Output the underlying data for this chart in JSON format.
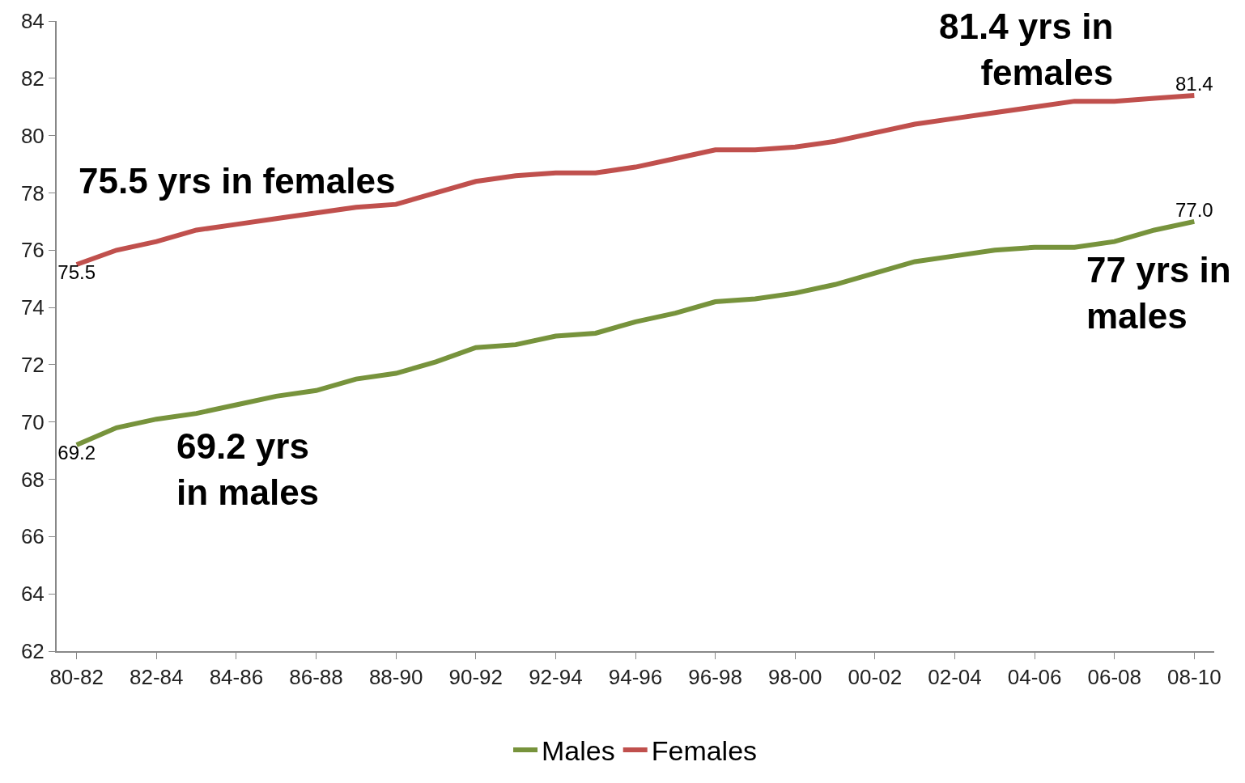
{
  "chart_data": {
    "type": "line",
    "categories": [
      "80-82",
      null,
      "82-84",
      null,
      "84-86",
      null,
      "86-88",
      null,
      "88-90",
      null,
      "90-92",
      null,
      "92-94",
      null,
      "94-96",
      null,
      "96-98",
      null,
      "98-00",
      null,
      "00-02",
      null,
      "02-04",
      null,
      "04-06",
      null,
      "06-08",
      null,
      "08-10"
    ],
    "series": [
      {
        "name": "Males",
        "color": "#77933c",
        "values": [
          69.2,
          69.8,
          70.1,
          70.3,
          70.6,
          70.9,
          71.1,
          71.5,
          71.7,
          72.1,
          72.6,
          72.7,
          73.0,
          73.1,
          73.5,
          73.8,
          74.2,
          74.3,
          74.5,
          74.8,
          75.2,
          75.6,
          75.8,
          76.0,
          76.1,
          76.1,
          76.3,
          76.7,
          77.0
        ],
        "value_labels": [
          "69.2",
          null,
          null,
          null,
          null,
          null,
          null,
          null,
          null,
          null,
          null,
          null,
          null,
          null,
          null,
          null,
          null,
          null,
          null,
          null,
          null,
          null,
          null,
          null,
          null,
          null,
          null,
          null,
          "77.0"
        ]
      },
      {
        "name": "Females",
        "color": "#c0504d",
        "values": [
          75.5,
          76.0,
          76.3,
          76.7,
          76.9,
          77.1,
          77.3,
          77.5,
          77.6,
          78.0,
          78.4,
          78.6,
          78.7,
          78.7,
          78.9,
          79.2,
          79.5,
          79.5,
          79.6,
          79.8,
          80.1,
          80.4,
          80.6,
          80.8,
          81.0,
          81.2,
          81.2,
          81.3,
          81.4
        ],
        "value_labels": [
          "75.5",
          null,
          null,
          null,
          null,
          null,
          null,
          null,
          null,
          null,
          null,
          null,
          null,
          null,
          null,
          null,
          null,
          null,
          null,
          null,
          null,
          null,
          null,
          null,
          null,
          null,
          null,
          null,
          "81.4"
        ]
      }
    ],
    "ylim": [
      62,
      84
    ],
    "yticks": [
      62,
      64,
      66,
      68,
      70,
      72,
      74,
      76,
      78,
      80,
      82,
      84
    ],
    "annotations": [
      "75.5 yrs in females",
      "81.4 yrs in\nfemales",
      "77 yrs in\nmales",
      "69.2 yrs\nin males"
    ],
    "grid": false,
    "legend": "bottom",
    "marker": "none",
    "line_style": "solid"
  }
}
